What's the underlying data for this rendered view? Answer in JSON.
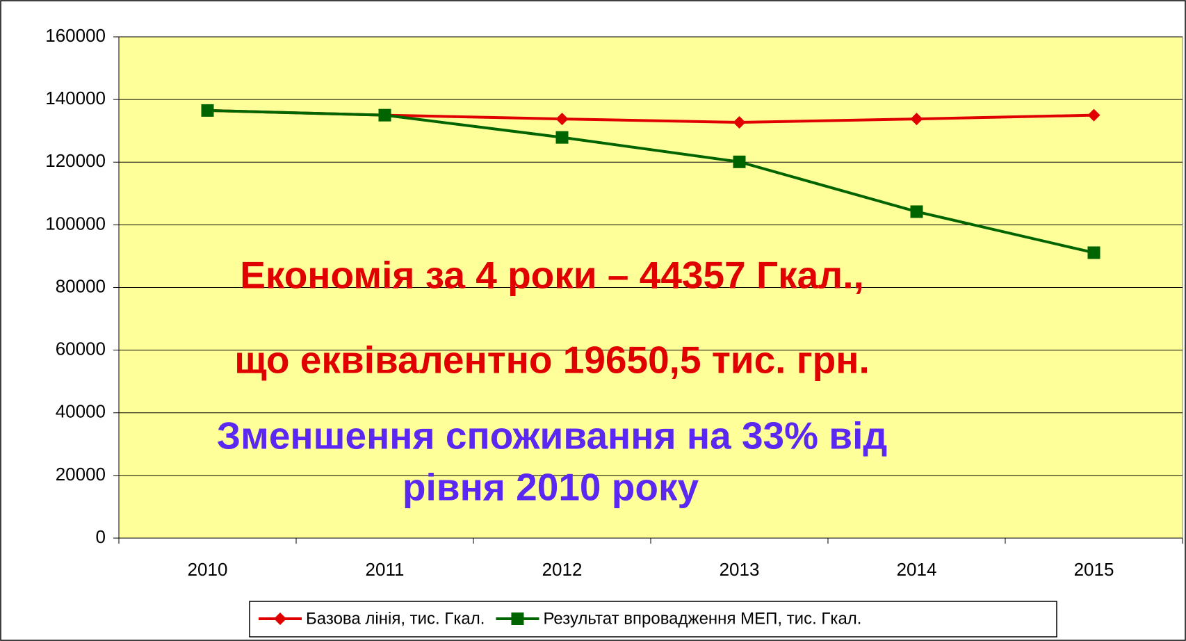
{
  "chart_data": {
    "type": "line",
    "categories": [
      "2010",
      "2011",
      "2012",
      "2013",
      "2014",
      "2015"
    ],
    "series": [
      {
        "name": "Базова лінія, тис. Гкал.",
        "color": "#e00000",
        "marker": "diamond",
        "values": [
          136500,
          135000,
          133800,
          132700,
          133800,
          135000
        ]
      },
      {
        "name": "Результат впровадження МЕП, тис. Гкал.",
        "color": "#006400",
        "marker": "square",
        "values": [
          136500,
          135000,
          127900,
          120100,
          104200,
          91100
        ]
      }
    ],
    "ylim": [
      0,
      160000
    ],
    "yticks": [
      0,
      20000,
      40000,
      60000,
      80000,
      100000,
      120000,
      140000,
      160000
    ],
    "grid": true,
    "legend": "bottom",
    "annotations": [
      "Економія за 4 роки – 44357 Гкал.,",
      "що еквівалентно 19650,5 тис. грн.",
      "Зменшення споживання на 33% від",
      "рівня 2010 року"
    ]
  }
}
